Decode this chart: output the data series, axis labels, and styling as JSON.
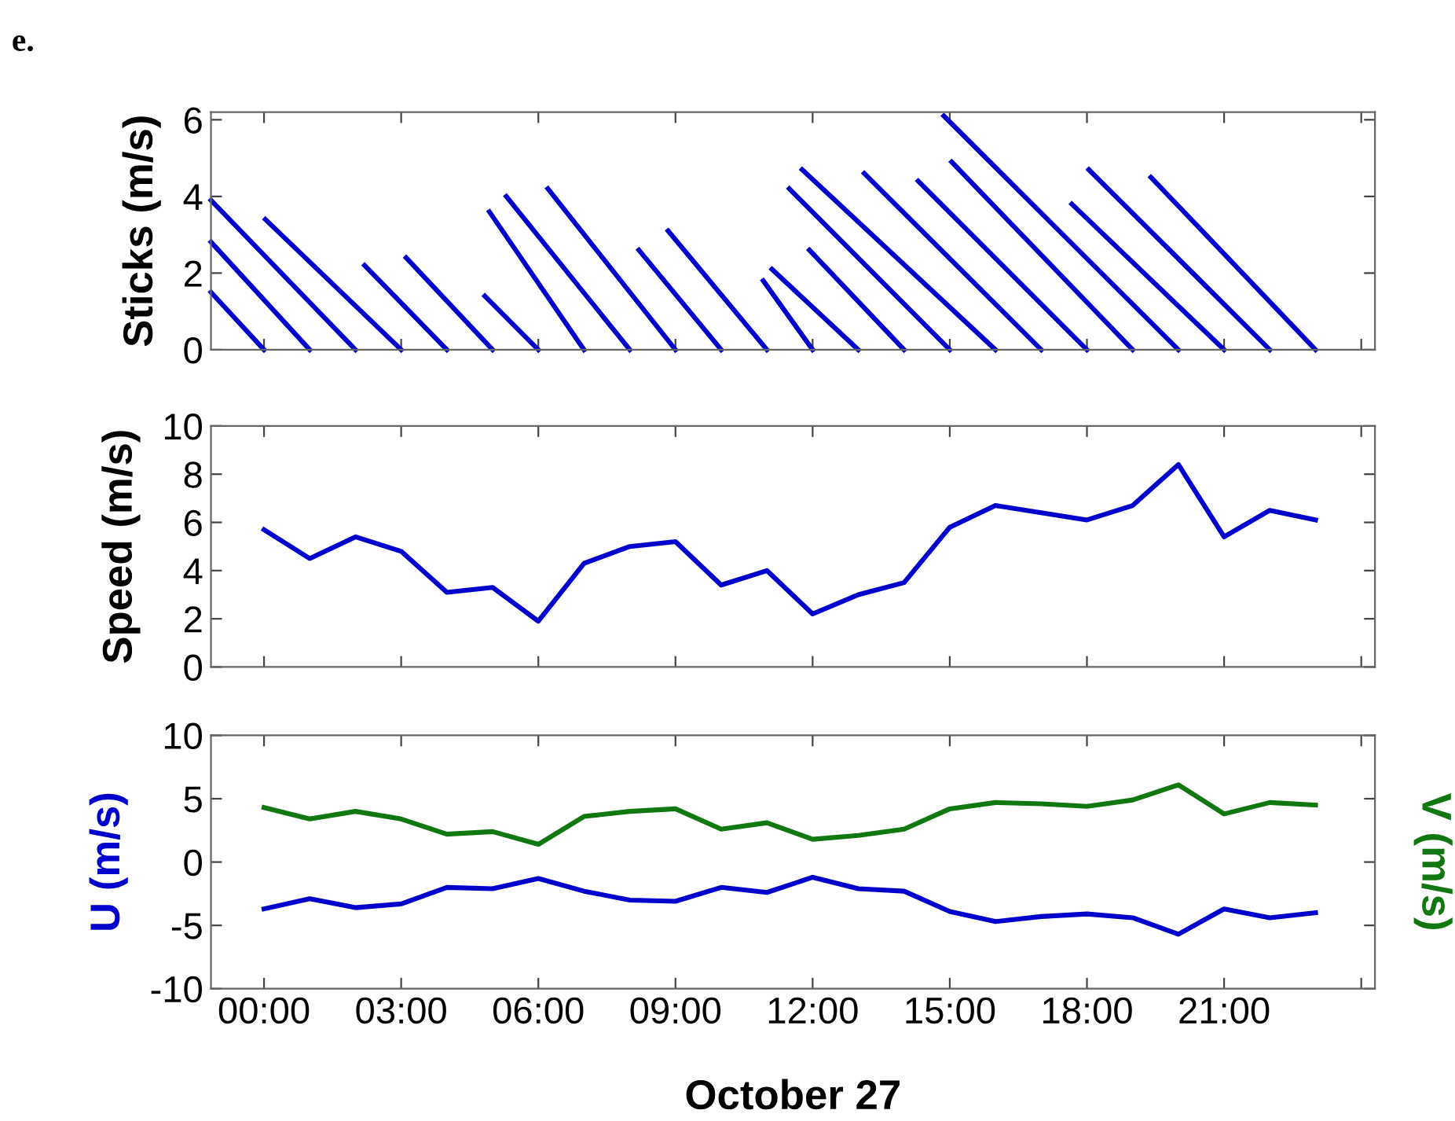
{
  "chart_data": [
    {
      "type": "line",
      "title": "e.",
      "ylabel": "Sticks (m/s)",
      "xlim": [
        -1.16,
        24.3
      ],
      "ylim": [
        0,
        6.2
      ],
      "yticks": [
        0,
        2,
        4,
        6
      ],
      "xticks": [
        {
          "value": 0,
          "label": null
        },
        {
          "value": 3,
          "label": null
        },
        {
          "value": 6,
          "label": null
        },
        {
          "value": 9,
          "label": null
        },
        {
          "value": 12,
          "label": null
        },
        {
          "value": 15,
          "label": null
        },
        {
          "value": 18,
          "label": null
        },
        {
          "value": 21,
          "label": null
        },
        {
          "value": 24,
          "label": null
        }
      ],
      "tick_labels": "y",
      "grid": false,
      "legend": false,
      "line_style": "solid",
      "marker": "none",
      "series": [
        {
          "color": "#0000cc",
          "x": [
            0,
            -1.16,
            null,
            1,
            -1.16,
            null,
            2,
            -1.16,
            null,
            3,
            0.03,
            null,
            4,
            2.2,
            null,
            5,
            3.11,
            null,
            6,
            4.83,
            null,
            7,
            4.93,
            null,
            8,
            5.3,
            null,
            9,
            6.21,
            null,
            10,
            8.2,
            null,
            11,
            8.84,
            null,
            12,
            10.92,
            null,
            13,
            11.11,
            null,
            14,
            11.93,
            null,
            15,
            11.49,
            null,
            16,
            11.77,
            null,
            17,
            13.13,
            null,
            18,
            14.31,
            null,
            19,
            15.04,
            null,
            20,
            14.87,
            null,
            21,
            17.67,
            null,
            22,
            18.04,
            null,
            23,
            19.4
          ],
          "values": [
            0,
            1.5,
            null,
            0,
            2.81,
            null,
            0,
            3.9,
            null,
            0,
            3.4,
            null,
            0,
            2.2,
            null,
            0,
            2.4,
            null,
            0,
            1.4,
            null,
            0,
            3.6,
            null,
            0,
            4.0,
            null,
            0,
            4.2,
            null,
            0,
            2.6,
            null,
            0,
            3.1,
            null,
            0,
            1.8,
            null,
            0,
            2.1,
            null,
            0,
            2.6,
            null,
            0,
            4.2,
            null,
            0,
            4.7,
            null,
            0,
            4.6,
            null,
            0,
            4.4,
            null,
            0,
            4.9,
            null,
            0,
            6.1,
            null,
            0,
            3.8,
            null,
            0,
            4.7,
            null,
            0,
            4.5
          ]
        }
      ]
    },
    {
      "type": "line",
      "ylabel": "Speed (m/s)",
      "xlim": [
        -1.16,
        24.3
      ],
      "ylim": [
        0,
        10
      ],
      "yticks": [
        0,
        2,
        4,
        6,
        8,
        10
      ],
      "xticks": [
        {
          "value": 0,
          "label": null
        },
        {
          "value": 3,
          "label": null
        },
        {
          "value": 6,
          "label": null
        },
        {
          "value": 9,
          "label": null
        },
        {
          "value": 12,
          "label": null
        },
        {
          "value": 15,
          "label": null
        },
        {
          "value": 18,
          "label": null
        },
        {
          "value": 21,
          "label": null
        },
        {
          "value": 24,
          "label": null
        }
      ],
      "tick_labels": "y",
      "grid": false,
      "legend": false,
      "line_style": "solid",
      "marker": "none",
      "x": [
        0,
        1,
        2,
        3,
        4,
        5,
        6,
        7,
        8,
        9,
        10,
        11,
        12,
        13,
        14,
        15,
        16,
        17,
        18,
        19,
        20,
        21,
        22,
        23
      ],
      "series": [
        {
          "color": "#0000cc",
          "values": [
            5.7,
            4.5,
            5.4,
            4.8,
            3.1,
            3.3,
            1.9,
            4.3,
            5.0,
            5.2,
            3.4,
            4.0,
            2.2,
            3.0,
            3.5,
            5.8,
            6.7,
            6.4,
            6.1,
            6.7,
            8.4,
            5.4,
            6.5,
            6.1
          ]
        }
      ]
    },
    {
      "type": "line",
      "ylabel": "U (m/s)",
      "y2label": "V (m/s)",
      "xlabel": "October 27",
      "xlim": [
        -1.16,
        24.3
      ],
      "ylim": [
        -10,
        10
      ],
      "yticks": [
        -10,
        -5,
        0,
        5,
        10
      ],
      "xticks": [
        {
          "value": 0,
          "label": "00:00"
        },
        {
          "value": 3,
          "label": "03:00"
        },
        {
          "value": 6,
          "label": "06:00"
        },
        {
          "value": 9,
          "label": "09:00"
        },
        {
          "value": 12,
          "label": "12:00"
        },
        {
          "value": 15,
          "label": "15:00"
        },
        {
          "value": 18,
          "label": "18:00"
        },
        {
          "value": 21,
          "label": "21:00"
        },
        {
          "value": 24,
          "label": null
        }
      ],
      "grid": false,
      "legend": false,
      "line_style": "solid",
      "marker": "none",
      "x": [
        0,
        1,
        2,
        3,
        4,
        5,
        6,
        7,
        8,
        9,
        10,
        11,
        12,
        13,
        14,
        15,
        16,
        17,
        18,
        19,
        20,
        21,
        22,
        23
      ],
      "series": [
        {
          "color": "#0000cc",
          "values": [
            -3.7,
            -2.9,
            -3.6,
            -3.3,
            -2.0,
            -2.1,
            -1.3,
            -2.3,
            -3.0,
            -3.1,
            -2.0,
            -2.4,
            -1.2,
            -2.1,
            -2.3,
            -3.9,
            -4.7,
            -4.3,
            -4.1,
            -4.4,
            -5.7,
            -3.7,
            -4.4,
            -4.0
          ]
        },
        {
          "color": "#117711",
          "values": [
            4.3,
            3.4,
            4.0,
            3.4,
            2.2,
            2.4,
            1.4,
            3.6,
            4.0,
            4.2,
            2.6,
            3.1,
            1.8,
            2.1,
            2.6,
            4.2,
            4.7,
            4.6,
            4.4,
            4.9,
            6.1,
            3.8,
            4.7,
            4.5
          ]
        }
      ]
    }
  ]
}
